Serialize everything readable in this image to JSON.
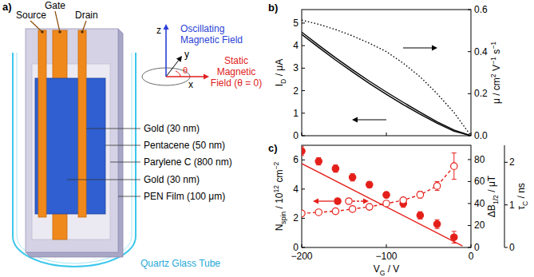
{
  "diagram": {
    "panel_label": "a)",
    "electrodes": [
      "Source",
      "Gate",
      "Drain"
    ],
    "layers": [
      "Gold (30 nm)",
      "Pentacene (50 nm)",
      "Parylene C (800 nm)",
      "Gold (30 nm)",
      "PEN Film (100 μm)"
    ],
    "tube": "Quartz Glass Tube",
    "axes": [
      "x",
      "y",
      "z"
    ],
    "angle": "θ",
    "oscillating_field": "Oscillating Magnetic Field",
    "static_field": "Static Magnetic Field (θ = 0)"
  },
  "chart_data": [
    {
      "type": "line",
      "panel_label": "b)",
      "y_label": [
        "I",
        {
          "sub": "D"
        },
        " / μA"
      ],
      "y2_label": [
        "μ / cm",
        {
          "sup": "2"
        },
        " V",
        {
          "sup": "−1"
        },
        " s",
        {
          "sup": "−1"
        }
      ],
      "xlim": [
        -200,
        0
      ],
      "xticks": [
        -200,
        -100,
        0
      ],
      "ylim": [
        0,
        5.6
      ],
      "yticks": [
        0,
        1,
        2,
        3,
        4,
        5
      ],
      "y2lim": [
        0,
        0.6
      ],
      "y2ticks": [
        {
          "value": 0,
          "label": "0.0"
        },
        0.2,
        0.4,
        0.6
      ],
      "tick_labels": "y",
      "series": [
        {
          "color": "#000000",
          "line_style": "solid",
          "x": [
            -200,
            -180,
            -160,
            -140,
            -120,
            -100,
            -80,
            -60,
            -40,
            -20,
            0
          ],
          "values": [
            4.6,
            4.02,
            3.46,
            2.93,
            2.42,
            1.94,
            1.48,
            1.04,
            0.62,
            0.25,
            0.0
          ]
        },
        {
          "color": "#000000",
          "line_style": "solid",
          "x": [
            -200,
            -180,
            -160,
            -140,
            -120,
            -100,
            -80,
            -60,
            -40,
            -20,
            0
          ],
          "values": [
            4.5,
            3.92,
            3.36,
            2.83,
            2.32,
            1.84,
            1.38,
            0.95,
            0.55,
            0.2,
            0.0
          ]
        },
        {
          "color": "#000000",
          "line_style": "dotted",
          "axis": "y2",
          "x": [
            -200,
            -180,
            -160,
            -140,
            -120,
            -100,
            -80,
            -60,
            -40,
            -20,
            0
          ],
          "values": [
            0.55,
            0.53,
            0.505,
            0.475,
            0.44,
            0.4,
            0.345,
            0.28,
            0.2,
            0.11,
            0.0
          ]
        }
      ]
    },
    {
      "type": "scatter",
      "panel_label": "c)",
      "x_label": [
        "V",
        {
          "sub": "G"
        },
        " / V"
      ],
      "y_label": [
        "N",
        {
          "sub": "spin"
        },
        " / 10",
        {
          "sup": "12"
        },
        " cm",
        {
          "sup": "−2"
        }
      ],
      "y2_label": [
        "ΔB",
        {
          "sub": "1/2"
        },
        " / μT"
      ],
      "y3_label": [
        "τ",
        {
          "sub": "C"
        },
        " / ns"
      ],
      "xlim": [
        -200,
        0
      ],
      "xticks": [
        {
          "value": -200,
          "label": "−200"
        },
        {
          "value": -100,
          "label": "−100"
        },
        0
      ],
      "ylim": [
        0,
        7
      ],
      "yticks": [
        0,
        2,
        4,
        6
      ],
      "y2lim": [
        0,
        93
      ],
      "y2ticks": [
        0,
        20,
        40,
        60,
        80
      ],
      "y3lim": [
        0,
        2.4
      ],
      "y3ticks": [
        0,
        1,
        2
      ],
      "series": [
        {
          "type": "scatter",
          "marker": "filled-circle",
          "color": "#e41f1a",
          "x": [
            -200,
            -180,
            -160,
            -140,
            -120,
            -100,
            -80,
            -60,
            -40,
            -20
          ],
          "values": [
            6.6,
            5.9,
            5.4,
            4.8,
            4.3,
            3.6,
            3.0,
            2.2,
            1.6,
            0.7
          ],
          "errors": [
            0.3,
            0.25,
            0.25,
            0.25,
            0.2,
            0.2,
            0.25,
            0.25,
            0.3,
            0.4
          ]
        },
        {
          "type": "line",
          "line_style": "solid",
          "color": "#e41f1a",
          "x": [
            -200,
            -10
          ],
          "values": [
            5.75,
            0.1
          ]
        },
        {
          "type": "line",
          "marker": "open-circle",
          "line_style": "dashed",
          "color": "#e41f1a",
          "axis": "y2",
          "x": [
            -200,
            -180,
            -160,
            -140,
            -120,
            -100,
            -80,
            -60,
            -40,
            -20
          ],
          "values": [
            31,
            32,
            33,
            35,
            37,
            40,
            43,
            48,
            56,
            74
          ],
          "errors": [
            2,
            2,
            2,
            2,
            2,
            2,
            2,
            3,
            4,
            12
          ]
        }
      ]
    }
  ]
}
